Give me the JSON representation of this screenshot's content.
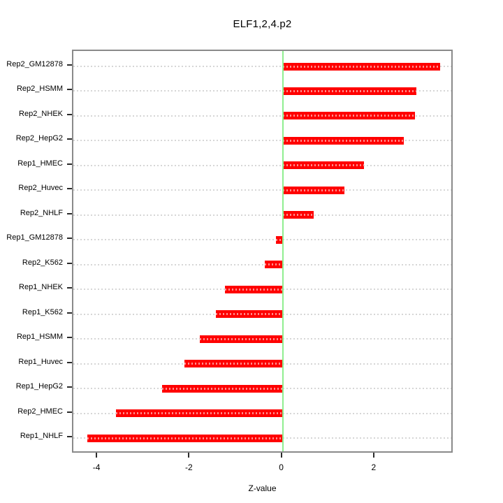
{
  "title": "ELF1,2,4.p2",
  "xlabel": "Z-value",
  "chart_data": {
    "type": "bar",
    "orientation": "horizontal",
    "title": "ELF1,2,4.p2",
    "xlabel": "Z-value",
    "ylabel": "",
    "categories": [
      "Rep2_GM12878",
      "Rep2_HSMM",
      "Rep2_NHEK",
      "Rep2_HepG2",
      "Rep1_HMEC",
      "Rep2_Huvec",
      "Rep2_NHLF",
      "Rep1_GM12878",
      "Rep2_K562",
      "Rep1_NHEK",
      "Rep1_K562",
      "Rep1_HSMM",
      "Rep1_Huvec",
      "Rep1_HepG2",
      "Rep2_HMEC",
      "Rep1_NHLF"
    ],
    "values": [
      3.41,
      2.9,
      2.86,
      2.62,
      1.76,
      1.34,
      0.67,
      -0.15,
      -0.38,
      -1.25,
      -1.45,
      -1.79,
      -2.12,
      -2.61,
      -3.61,
      -4.23
    ],
    "xlim": [
      -4.53,
      3.71
    ],
    "x_ticks": [
      -4,
      -2,
      0,
      2
    ],
    "x_tick_labels": [
      "-4",
      "-2",
      "0",
      "2"
    ],
    "grid": true,
    "legend": "none",
    "reference_line_x": 0,
    "colors": {
      "bar": "#ff0000",
      "bar_stripe": "rgba(255,255,255,0.55)",
      "zero_line": "#90ee90",
      "grid": "#d6d6d6",
      "box": "#8a8a8a",
      "text": "#000000"
    }
  }
}
